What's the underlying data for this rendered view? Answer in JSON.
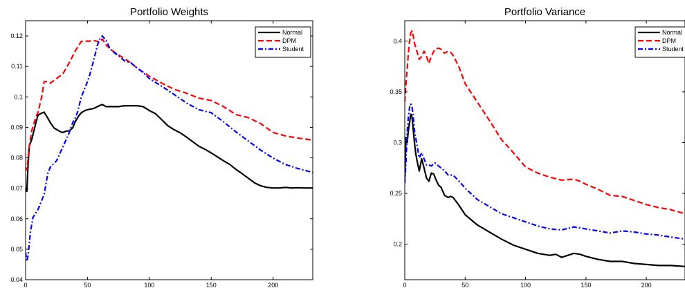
{
  "chart_data": [
    {
      "type": "line",
      "title": "Portfolio Weights",
      "xlabel": "",
      "ylabel": "",
      "xlim": [
        0,
        232
      ],
      "ylim": [
        0.04,
        0.125
      ],
      "xticks": [
        0,
        50,
        100,
        150,
        200
      ],
      "xtick_labels": [
        "0",
        "50",
        "100",
        "150",
        "200"
      ],
      "yticks": [
        0.04,
        0.05,
        0.06,
        0.07,
        0.08,
        0.09,
        0.1,
        0.11,
        0.12
      ],
      "ytick_labels": [
        "0.04",
        "0.05",
        "0.06",
        "0.07",
        "0.08",
        "0.09",
        "0.1",
        "0.11",
        "0.12"
      ],
      "grid": false,
      "legend_position": "top-right",
      "series": [
        {
          "name": "Normal",
          "color": "#000000",
          "style": "solid",
          "x": [
            0,
            1,
            2,
            3,
            5,
            8,
            10,
            12,
            15,
            18,
            20,
            23,
            25,
            28,
            30,
            33,
            35,
            38,
            40,
            43,
            45,
            48,
            50,
            55,
            60,
            62,
            65,
            70,
            75,
            80,
            85,
            90,
            95,
            100,
            105,
            110,
            115,
            120,
            125,
            130,
            135,
            140,
            145,
            150,
            155,
            160,
            165,
            170,
            175,
            180,
            185,
            190,
            195,
            200,
            205,
            210,
            215,
            220,
            225,
            232
          ],
          "values": [
            0.07,
            0.069,
            0.078,
            0.084,
            0.086,
            0.091,
            0.094,
            0.0945,
            0.095,
            0.093,
            0.0915,
            0.0898,
            0.0893,
            0.0886,
            0.0883,
            0.0888,
            0.0888,
            0.0898,
            0.0918,
            0.0938,
            0.0948,
            0.0955,
            0.0958,
            0.0962,
            0.0972,
            0.0975,
            0.0968,
            0.0968,
            0.0968,
            0.0971,
            0.0971,
            0.0971,
            0.0968,
            0.0955,
            0.0945,
            0.0925,
            0.0905,
            0.0892,
            0.0882,
            0.0868,
            0.0853,
            0.0838,
            0.0828,
            0.0816,
            0.0803,
            0.079,
            0.0778,
            0.0762,
            0.0748,
            0.0733,
            0.0718,
            0.0708,
            0.0703,
            0.0701,
            0.0701,
            0.0703,
            0.0701,
            0.0702,
            0.0701,
            0.0701
          ]
        },
        {
          "name": "DPM",
          "color": "#ff0000",
          "style": "dashed",
          "x": [
            0,
            1,
            2,
            3,
            5,
            8,
            10,
            13,
            15,
            18,
            20,
            25,
            30,
            35,
            40,
            45,
            48,
            52,
            55,
            60,
            62,
            65,
            70,
            75,
            80,
            85,
            90,
            100,
            110,
            120,
            130,
            140,
            150,
            160,
            170,
            180,
            190,
            200,
            210,
            220,
            232
          ],
          "values": [
            0.077,
            0.076,
            0.08,
            0.084,
            0.089,
            0.093,
            0.095,
            0.1,
            0.105,
            0.105,
            0.1045,
            0.106,
            0.1075,
            0.111,
            0.115,
            0.1182,
            0.1183,
            0.1183,
            0.1185,
            0.118,
            0.119,
            0.117,
            0.1152,
            0.1138,
            0.1125,
            0.1112,
            0.1095,
            0.1068,
            0.1045,
            0.1025,
            0.1012,
            0.0996,
            0.0988,
            0.0968,
            0.0942,
            0.0932,
            0.0912,
            0.0883,
            0.0872,
            0.0865,
            0.0858
          ]
        },
        {
          "name": "Student",
          "color": "#0000ff",
          "style": "dashdot",
          "x": [
            0,
            1,
            2,
            4,
            6,
            10,
            15,
            18,
            20,
            25,
            30,
            35,
            38,
            40,
            42,
            45,
            48,
            50,
            52,
            55,
            58,
            60,
            62,
            65,
            68,
            70,
            75,
            80,
            85,
            90,
            95,
            100,
            110,
            120,
            130,
            140,
            150,
            160,
            170,
            180,
            190,
            200,
            210,
            220,
            232
          ],
          "values": [
            0.049,
            0.046,
            0.048,
            0.056,
            0.0605,
            0.063,
            0.068,
            0.075,
            0.077,
            0.079,
            0.0835,
            0.088,
            0.0915,
            0.093,
            0.095,
            0.1,
            0.103,
            0.105,
            0.1075,
            0.112,
            0.117,
            0.119,
            0.12,
            0.1185,
            0.116,
            0.115,
            0.1135,
            0.1118,
            0.1112,
            0.1095,
            0.108,
            0.106,
            0.1035,
            0.1008,
            0.098,
            0.0958,
            0.0948,
            0.0918,
            0.0885,
            0.0855,
            0.0825,
            0.0799,
            0.0778,
            0.0765,
            0.0752
          ]
        }
      ]
    },
    {
      "type": "line",
      "title": "Portfolio Variance",
      "xlabel": "",
      "ylabel": "",
      "xlim": [
        0,
        232
      ],
      "ylim": [
        0.165,
        0.42
      ],
      "xticks": [
        0,
        50,
        100,
        150,
        200
      ],
      "xtick_labels": [
        "0",
        "50",
        "100",
        "150",
        "200"
      ],
      "yticks": [
        0.2,
        0.25,
        0.3,
        0.35,
        0.4
      ],
      "ytick_labels": [
        "0.2",
        "0.25",
        "0.3",
        "0.35",
        "0.4"
      ],
      "grid": false,
      "legend_position": "top-right",
      "series": [
        {
          "name": "Normal",
          "color": "#000000",
          "style": "solid",
          "x": [
            0,
            1,
            2,
            3,
            4,
            5,
            6,
            7,
            8,
            9,
            10,
            12,
            14,
            16,
            18,
            20,
            22,
            24,
            26,
            28,
            30,
            33,
            36,
            38,
            40,
            45,
            50,
            60,
            70,
            80,
            90,
            100,
            110,
            120,
            125,
            130,
            135,
            140,
            145,
            150,
            160,
            170,
            180,
            190,
            200,
            210,
            220,
            232
          ],
          "values": [
            0.265,
            0.305,
            0.3,
            0.312,
            0.32,
            0.328,
            0.325,
            0.313,
            0.3,
            0.29,
            0.283,
            0.272,
            0.284,
            0.275,
            0.265,
            0.262,
            0.27,
            0.269,
            0.263,
            0.258,
            0.256,
            0.248,
            0.246,
            0.247,
            0.246,
            0.238,
            0.229,
            0.219,
            0.212,
            0.205,
            0.199,
            0.195,
            0.191,
            0.189,
            0.19,
            0.187,
            0.189,
            0.191,
            0.19,
            0.188,
            0.185,
            0.183,
            0.183,
            0.181,
            0.18,
            0.179,
            0.179,
            0.178
          ]
        },
        {
          "name": "DPM",
          "color": "#ff0000",
          "style": "dashed",
          "x": [
            0,
            1,
            2,
            3,
            4,
            5,
            6,
            7,
            8,
            10,
            12,
            14,
            16,
            18,
            20,
            22,
            25,
            28,
            30,
            33,
            36,
            38,
            40,
            45,
            50,
            60,
            70,
            80,
            90,
            100,
            110,
            120,
            130,
            140,
            145,
            150,
            160,
            170,
            180,
            190,
            200,
            210,
            220,
            232
          ],
          "values": [
            0.34,
            0.358,
            0.372,
            0.388,
            0.4,
            0.408,
            0.41,
            0.405,
            0.398,
            0.39,
            0.382,
            0.385,
            0.39,
            0.385,
            0.378,
            0.385,
            0.392,
            0.393,
            0.392,
            0.388,
            0.39,
            0.389,
            0.386,
            0.374,
            0.358,
            0.34,
            0.322,
            0.303,
            0.29,
            0.276,
            0.27,
            0.266,
            0.263,
            0.264,
            0.262,
            0.259,
            0.254,
            0.248,
            0.247,
            0.243,
            0.239,
            0.236,
            0.234,
            0.23
          ]
        },
        {
          "name": "Student",
          "color": "#0000ff",
          "style": "dashdot",
          "x": [
            0,
            1,
            2,
            3,
            4,
            5,
            6,
            7,
            8,
            10,
            12,
            14,
            16,
            18,
            20,
            22,
            25,
            28,
            30,
            33,
            36,
            40,
            45,
            50,
            60,
            70,
            80,
            90,
            100,
            110,
            120,
            130,
            140,
            145,
            150,
            160,
            170,
            180,
            190,
            200,
            210,
            220,
            232
          ],
          "values": [
            0.26,
            0.28,
            0.31,
            0.325,
            0.335,
            0.338,
            0.335,
            0.326,
            0.312,
            0.298,
            0.285,
            0.29,
            0.284,
            0.278,
            0.278,
            0.277,
            0.28,
            0.277,
            0.275,
            0.272,
            0.268,
            0.268,
            0.262,
            0.255,
            0.244,
            0.237,
            0.23,
            0.226,
            0.222,
            0.218,
            0.215,
            0.214,
            0.217,
            0.216,
            0.215,
            0.213,
            0.211,
            0.213,
            0.212,
            0.21,
            0.209,
            0.207,
            0.205
          ]
        }
      ]
    }
  ]
}
